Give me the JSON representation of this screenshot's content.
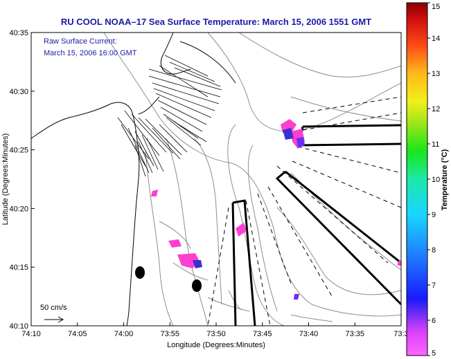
{
  "title": "RU COOL  NOAA–17  Sea Surface Temperature:  March 15, 2006 1551 GMT",
  "overlay": {
    "line1": "Raw Surface Current:",
    "line2": "March 15, 2006 16:00 GMT"
  },
  "scale": {
    "label": "50 cm/s"
  },
  "axes": {
    "xlabel": "Longitude (Degrees:Minutes)",
    "ylabel": "Latitude (Degrees:Minutes)",
    "x_ticks": [
      "74:10",
      "74:05",
      "74:00",
      "73:55",
      "73:50",
      "73:45",
      "73:40",
      "73:35",
      "73:3"
    ],
    "y_ticks": [
      "40:35",
      "40:30",
      "40:25",
      "40:20",
      "40:15",
      "40:10"
    ]
  },
  "colorbar": {
    "label": "Temperature (°C)",
    "ticks": [
      "15",
      "14",
      "13",
      "12",
      "11",
      "10",
      "9",
      "8",
      "7",
      "6",
      "5"
    ],
    "range": [
      5,
      15
    ]
  },
  "colors": {
    "title": "#1a1aa8",
    "land_outline": "#000000",
    "bathymetry": "#8c8c8c",
    "sst_patch_high": "#ff3fd0",
    "sst_patch_low": "#3b2fd0"
  }
}
